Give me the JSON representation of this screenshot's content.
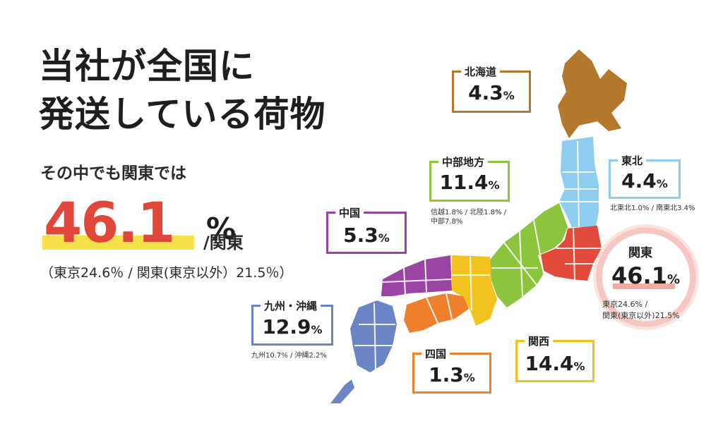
{
  "headline": {
    "line1": "当社が全国に",
    "line2": "発送している荷物",
    "subtitle": "その中でも関東では",
    "big_value": "46.1",
    "big_unit": "%",
    "big_region": "/関東",
    "breakdown": "（東京24.6％ / 関東(東京以外）21.5％）"
  },
  "regions": {
    "hokkaido": {
      "name": "北海道",
      "value": "4.3",
      "unit": "%",
      "color": "#b4782c"
    },
    "tohoku": {
      "name": "東北",
      "value": "4.4",
      "unit": "%",
      "note": "北東北1.0% / 南東北3.4%",
      "color": "#8ecdf0"
    },
    "chubu": {
      "name": "中部地方",
      "value": "11.4",
      "unit": "%",
      "note_line1": "信越1.8% / 北陸1.8% /",
      "note_line2": "中部7.8%",
      "color": "#8cc43e"
    },
    "chugoku": {
      "name": "中国",
      "value": "5.3",
      "unit": "%",
      "color": "#9a45a4"
    },
    "kanto": {
      "name": "関東",
      "value": "46.1",
      "unit": "%",
      "note_line1": "東京24.6% /",
      "note_line2": "関東(東京以外)21.5%",
      "color": "#e24a3c"
    },
    "kyushu": {
      "name": "九州・沖縄",
      "value": "12.9",
      "unit": "%",
      "note": "九州10.7% / 沖縄2.2%",
      "color": "#6b84c6"
    },
    "shikoku": {
      "name": "四国",
      "value": "1.3",
      "unit": "%",
      "color": "#ee7f2c"
    },
    "kansai": {
      "name": "関西",
      "value": "14.4",
      "unit": "%",
      "color": "#f2c31e"
    }
  }
}
